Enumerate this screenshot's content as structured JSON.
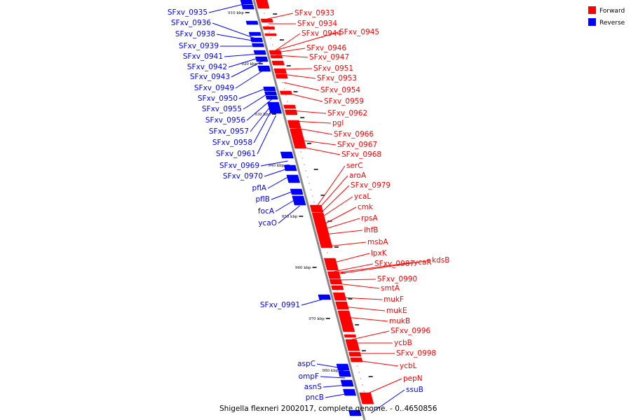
{
  "legend": {
    "forward": {
      "label": "Forward",
      "color": "#ff0000"
    },
    "reverse": {
      "label": "Reverse",
      "color": "#0000ff"
    }
  },
  "axis_color": "#888888",
  "caption": "Shigella flexneri 2002017, complete genome. - 0..4650856",
  "ticks": [
    {
      "label": "910 kbp"
    },
    {
      "label": "920 kbp"
    },
    {
      "label": "930 kbp"
    },
    {
      "label": "940 kbp"
    },
    {
      "label": "950 kbp"
    },
    {
      "label": "960 kbp"
    },
    {
      "label": "970 kbp"
    },
    {
      "label": "980 kbp"
    }
  ],
  "forward_genes": [
    "SFxv_0933",
    "SFxv_0934",
    "SFxv_0944",
    "SFxv_0945",
    "SFxv_0946",
    "SFxv_0947",
    "SFxv_0951",
    "SFxv_0953",
    "SFxv_0954",
    "SFxv_0959",
    "SFxv_0962",
    "pgl",
    "SFxv_0966",
    "SFxv_0967",
    "SFxv_0968",
    "serC",
    "aroA",
    "SFxv_0979",
    "ycaL",
    "cmk",
    "rpsA",
    "ihfB",
    "msbA",
    "lpxK",
    "SFxv_0987",
    "ycaR",
    "kdsB",
    "SFxv_0990",
    "smtA",
    "mukF",
    "mukE",
    "mukB",
    "SFxv_0996",
    "ycbB",
    "SFxv_0998",
    "ycbL",
    "pepN"
  ],
  "reverse_genes": [
    "SFxv_0935",
    "SFxv_0936",
    "SFxv_0938",
    "SFxv_0939",
    "SFxv_0941",
    "SFxv_0942",
    "SFxv_0943",
    "SFxv_0949",
    "SFxv_0950",
    "SFxv_0955",
    "SFxv_0956",
    "SFxv_0957",
    "SFxv_0958",
    "SFxv_0961",
    "SFxv_0969",
    "SFxv_0970",
    "pflA",
    "pflB",
    "focA",
    "ycaO",
    "SFxv_0991",
    "aspC",
    "ompF",
    "asnS",
    "pncB",
    "ssuB"
  ]
}
